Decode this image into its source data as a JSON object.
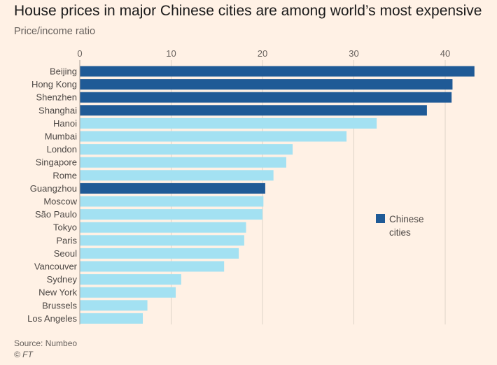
{
  "title": "House prices in major Chinese cities are among world’s most expensive",
  "subtitle": "Price/income ratio",
  "source": "Source: Numbeo",
  "credit": "© FT",
  "legend": {
    "label": "Chinese cities"
  },
  "colors": {
    "chinese": "#1f5a96",
    "other": "#a3e1f2",
    "background": "#fff1e5",
    "grid": "#ddd2c7"
  },
  "chart_data": {
    "type": "bar",
    "orientation": "horizontal",
    "title": "House prices in major Chinese cities are among world’s most expensive",
    "xlabel": "Price/income ratio",
    "ylabel": "",
    "xlim": [
      0,
      43
    ],
    "xticks": [
      0,
      10,
      20,
      30,
      40
    ],
    "grid": true,
    "legend_position": "right",
    "categories": [
      "Beijing",
      "Hong Kong",
      "Shenzhen",
      "Shanghai",
      "Hanoi",
      "Mumbai",
      "London",
      "Singapore",
      "Rome",
      "Guangzhou",
      "Moscow",
      "São Paulo",
      "Tokyo",
      "Paris",
      "Seoul",
      "Vancouver",
      "Sydney",
      "New York",
      "Brussels",
      "Los Angeles"
    ],
    "values": [
      43.2,
      40.8,
      40.7,
      38.0,
      32.5,
      29.2,
      23.3,
      22.6,
      21.2,
      20.3,
      20.1,
      20.0,
      18.2,
      18.0,
      17.4,
      15.8,
      11.1,
      10.5,
      7.4,
      6.9
    ],
    "chinese": [
      true,
      true,
      true,
      true,
      false,
      false,
      false,
      false,
      false,
      true,
      false,
      false,
      false,
      false,
      false,
      false,
      false,
      false,
      false,
      false
    ]
  }
}
